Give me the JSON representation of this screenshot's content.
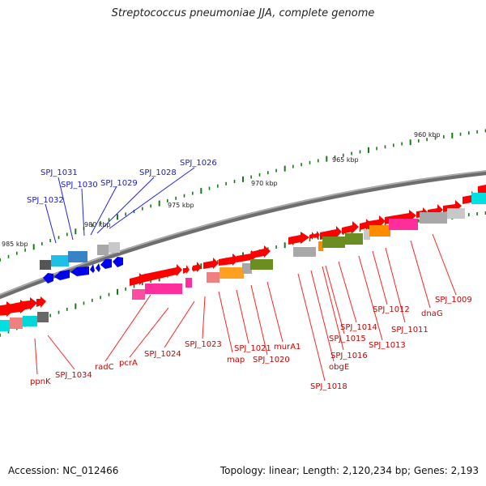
{
  "header": {
    "title": "Streptococcus pneumoniae JJA, complete genome"
  },
  "footer": {
    "accession": "Accession: NC_012466",
    "summary": "Topology: linear; Length: 2,120,234 bp; Genes: 2,193"
  },
  "colors": {
    "backbone": "#808080",
    "tick": "#1a7a1a",
    "forward_gene": "#ff0000",
    "reverse_gene": "#0000ff",
    "reverse_label": "#1a1acc",
    "forward_label": "#cc0000",
    "leader_line_forward": "#ff2222",
    "leader_line_reverse": "#2222ee"
  },
  "position_ticks": [
    "960 kbp",
    "965 kbp",
    "970 kbp",
    "975 kbp",
    "980 kbp",
    "985 kbp"
  ],
  "genes_reverse_strand": [
    "SPJ_1032",
    "SPJ_1031",
    "SPJ_1030",
    "SPJ_1029",
    "SPJ_1028",
    "SPJ_1026"
  ],
  "genes_forward_strand": [
    "ppnK",
    "SPJ_1034",
    "radC",
    "pcrA",
    "SPJ_1024",
    "SPJ_1023",
    "map",
    "SPJ_1021",
    "SPJ_1020",
    "murA1",
    "SPJ_1018",
    "obgE",
    "SPJ_1016",
    "SPJ_1015",
    "SPJ_1014",
    "SPJ_1013",
    "SPJ_1012",
    "SPJ_1011",
    "dnaG",
    "SPJ_1009"
  ]
}
